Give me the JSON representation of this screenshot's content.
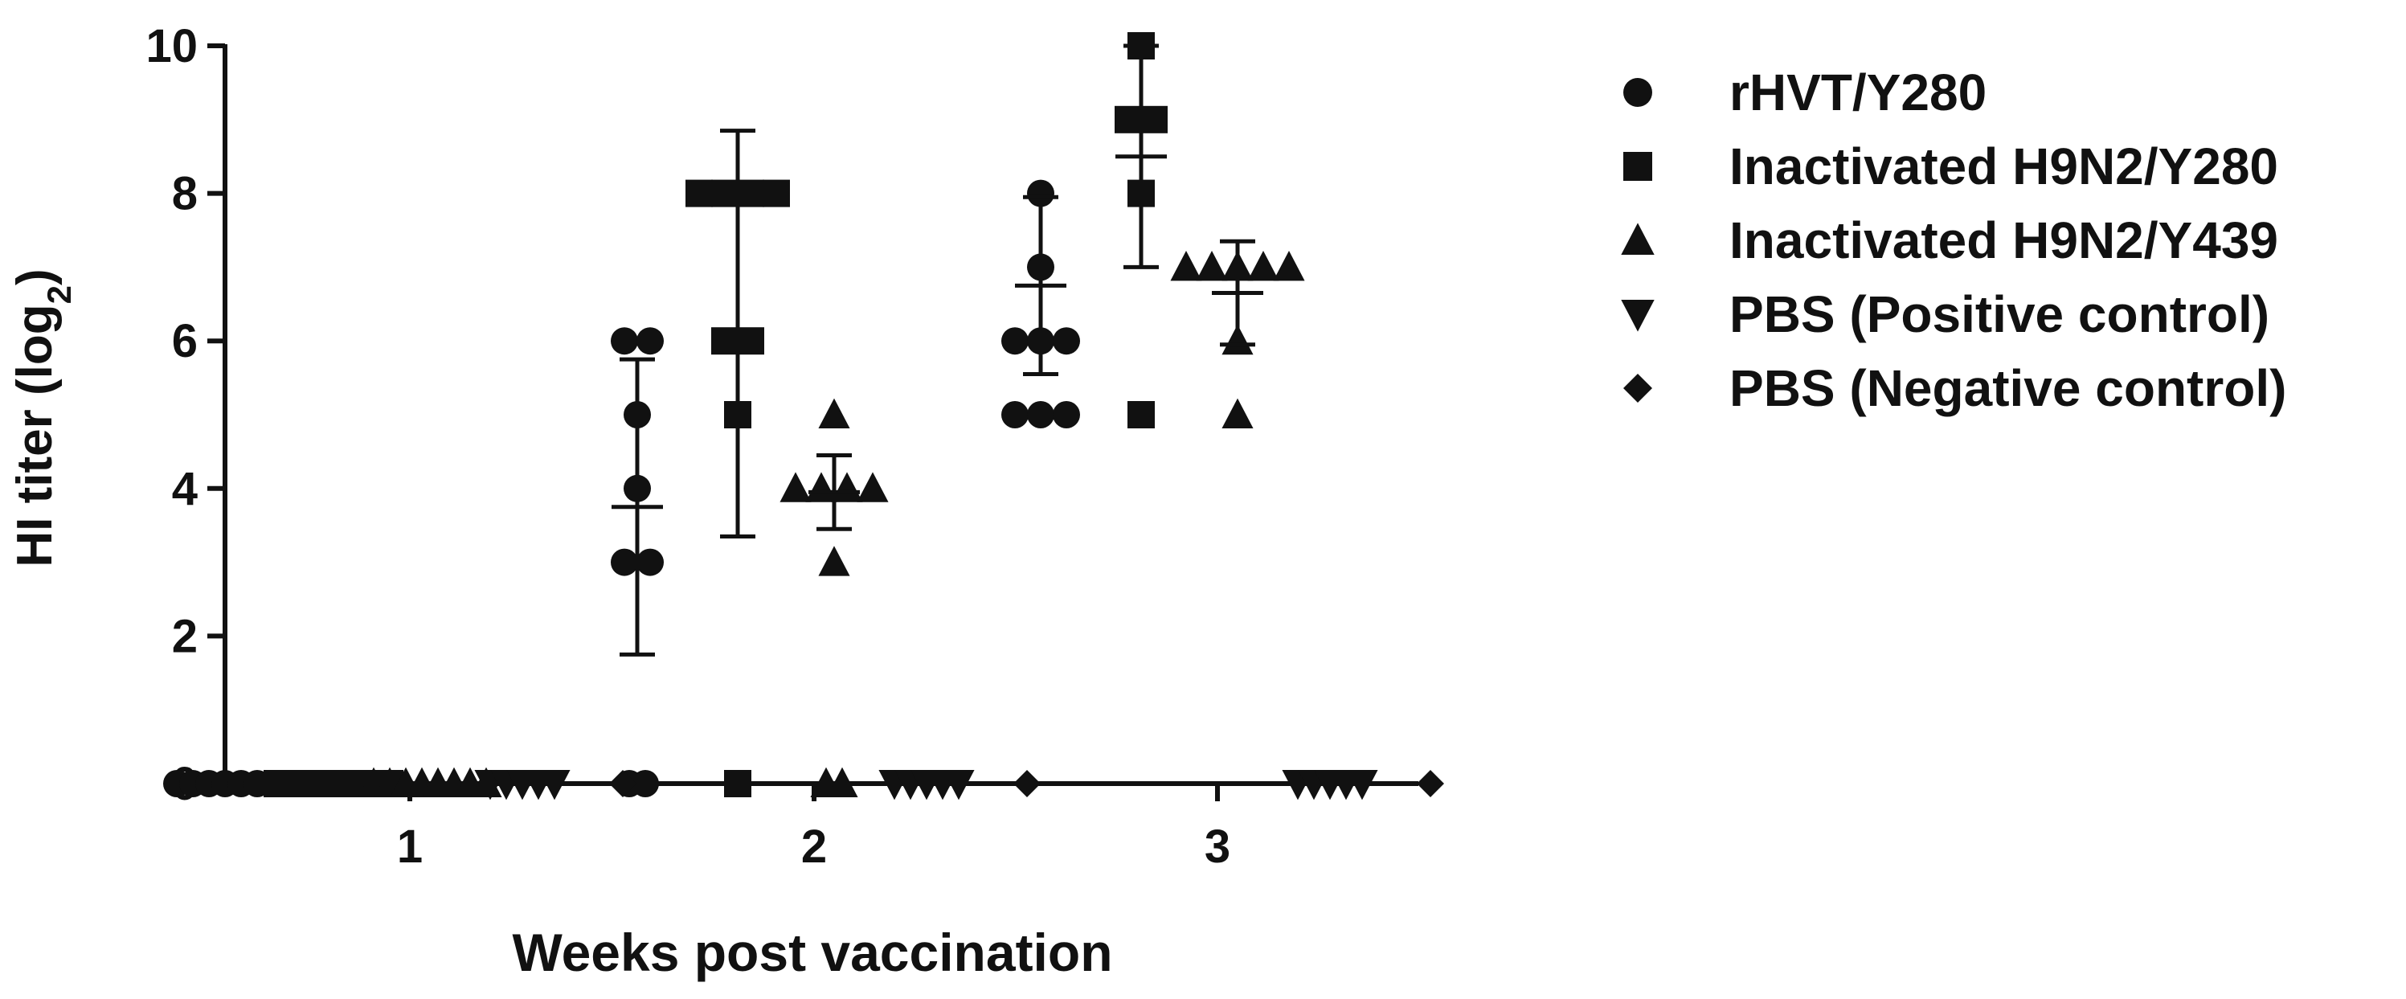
{
  "chart_data": {
    "type": "scatter",
    "xlabel": "Weeks post vaccination",
    "ylabel_main": "HI titer (log",
    "ylabel_sub": "2",
    "ylabel_close": ")",
    "ylim": [
      0,
      10
    ],
    "yticks": [
      0,
      2,
      4,
      6,
      8,
      10
    ],
    "categories": [
      "1",
      "2",
      "3"
    ],
    "legend_position": "right",
    "grid": false,
    "series": [
      {
        "name": "rHVT/Y280",
        "marker": "circle",
        "points": [
          [
            1,
            [
              0,
              0,
              0,
              0,
              0,
              0,
              0,
              0
            ]
          ],
          [
            2,
            [
              0,
              0,
              3,
              3,
              4,
              5,
              6,
              6
            ]
          ],
          [
            3,
            [
              5,
              5,
              5,
              6,
              6,
              7,
              8,
              6
            ]
          ]
        ],
        "mean": [
          null,
          3.75,
          6.75
        ],
        "sd": [
          null,
          2.0,
          1.2
        ]
      },
      {
        "name": "Inactivated H9N2/Y280",
        "marker": "square",
        "points": [
          [
            1,
            [
              0,
              0,
              0,
              0,
              0,
              0,
              0,
              0
            ]
          ],
          [
            2,
            [
              0,
              5,
              6,
              6,
              8,
              8,
              8,
              8
            ]
          ],
          [
            3,
            [
              5,
              8,
              9,
              9,
              10
            ]
          ]
        ],
        "mean": [
          null,
          6.1,
          8.5
        ],
        "sd": [
          null,
          2.75,
          1.5
        ]
      },
      {
        "name": "Inactivated H9N2/Y439",
        "marker": "triangle",
        "points": [
          [
            1,
            [
              0,
              0,
              0,
              0,
              0,
              0,
              0,
              0
            ]
          ],
          [
            2,
            [
              0,
              0,
              3,
              4,
              4,
              4,
              4,
              5
            ]
          ],
          [
            3,
            [
              5,
              6,
              7,
              7,
              7,
              7,
              7
            ]
          ]
        ],
        "mean": [
          null,
          3.95,
          6.65
        ],
        "sd": [
          null,
          0.5,
          0.7
        ]
      },
      {
        "name": "PBS (Positive control)",
        "marker": "triangle-down",
        "points": [
          [
            1,
            [
              0,
              0,
              0,
              0,
              0
            ]
          ],
          [
            2,
            [
              0,
              0,
              0,
              0,
              0
            ]
          ],
          [
            3,
            [
              0,
              0,
              0,
              0,
              0
            ]
          ]
        ],
        "mean": [
          null,
          null,
          null
        ],
        "sd": [
          null,
          null,
          null
        ]
      },
      {
        "name": "PBS (Negative control)",
        "marker": "diamond",
        "points": [
          [
            1,
            [
              0
            ]
          ],
          [
            2,
            [
              0
            ]
          ],
          [
            3,
            [
              0
            ]
          ]
        ],
        "mean": [
          null,
          null,
          null
        ],
        "sd": [
          null,
          null,
          null
        ]
      }
    ]
  }
}
